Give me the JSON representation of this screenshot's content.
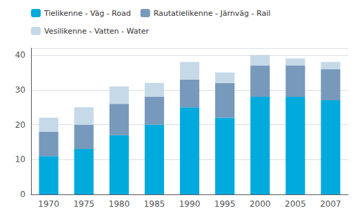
{
  "chart_data": {
    "type": "bar",
    "stacked": true,
    "categories": [
      "1970",
      "1975",
      "1980",
      "1985",
      "1990",
      "1995",
      "2000",
      "2005",
      "2007"
    ],
    "series": [
      {
        "name": "Tielikenne - Väg - ­Road",
        "color": "#00AADD",
        "values": [
          11,
          13,
          17,
          20,
          25,
          22,
          28,
          28,
          27
        ]
      },
      {
        "name": "Rautatielikenne - Järnväg - ­Rail",
        "color": "#7799BB",
        "values": [
          7,
          7,
          9,
          8,
          8,
          10,
          9,
          9,
          9
        ]
      },
      {
        "name": "Vesilikenne - Vatten - ­Water",
        "color": "#C5D9E8",
        "values": [
          4,
          5,
          5,
          4,
          5,
          3,
          3,
          2,
          2
        ]
      }
    ],
    "ylim": [
      0,
      42
    ],
    "yticks": [
      0,
      10,
      20,
      30,
      40
    ],
    "grid": true,
    "legend": "upper left"
  }
}
